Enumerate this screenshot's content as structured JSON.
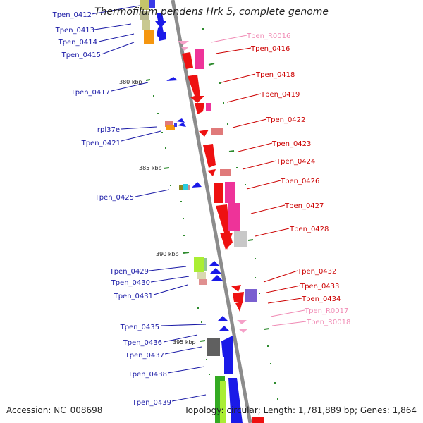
{
  "title": "Thermofilum pendens Hrk 5, complete genome",
  "footer": {
    "accession": "Accession: NC_008698",
    "topology": "Topology: circular; Length: 1,781,889 bp; Genes: 1,864"
  },
  "colors": {
    "blue_label": "#1a1aa6",
    "red_label": "#cc0000",
    "pink_label": "#f08ab4",
    "backbone": "#8c8c8c",
    "tick": "#2e8b2e"
  },
  "ticks": [
    "380 kbp",
    "385 kbp",
    "390 kbp",
    "395 kbp"
  ],
  "left_labels": [
    "Tpen_0412",
    "Tpen_0413",
    "Tpen_0414",
    "Tpen_0415",
    "Tpen_0417",
    "rpl37e",
    "Tpen_0421",
    "Tpen_0425",
    "Tpen_0429",
    "Tpen_0430",
    "Tpen_0431",
    "Tpen_0435",
    "Tpen_0436",
    "Tpen_0437",
    "Tpen_0438",
    "Tpen_0439"
  ],
  "right_labels": [
    "Tpen_R0016",
    "Tpen_0416",
    "Tpen_0418",
    "Tpen_0419",
    "Tpen_0422",
    "Tpen_0423",
    "Tpen_0424",
    "Tpen_0426",
    "Tpen_0427",
    "Tpen_0428",
    "Tpen_0432",
    "Tpen_0433",
    "Tpen_0434",
    "Tpen_R0017",
    "Tpen_R0018"
  ]
}
